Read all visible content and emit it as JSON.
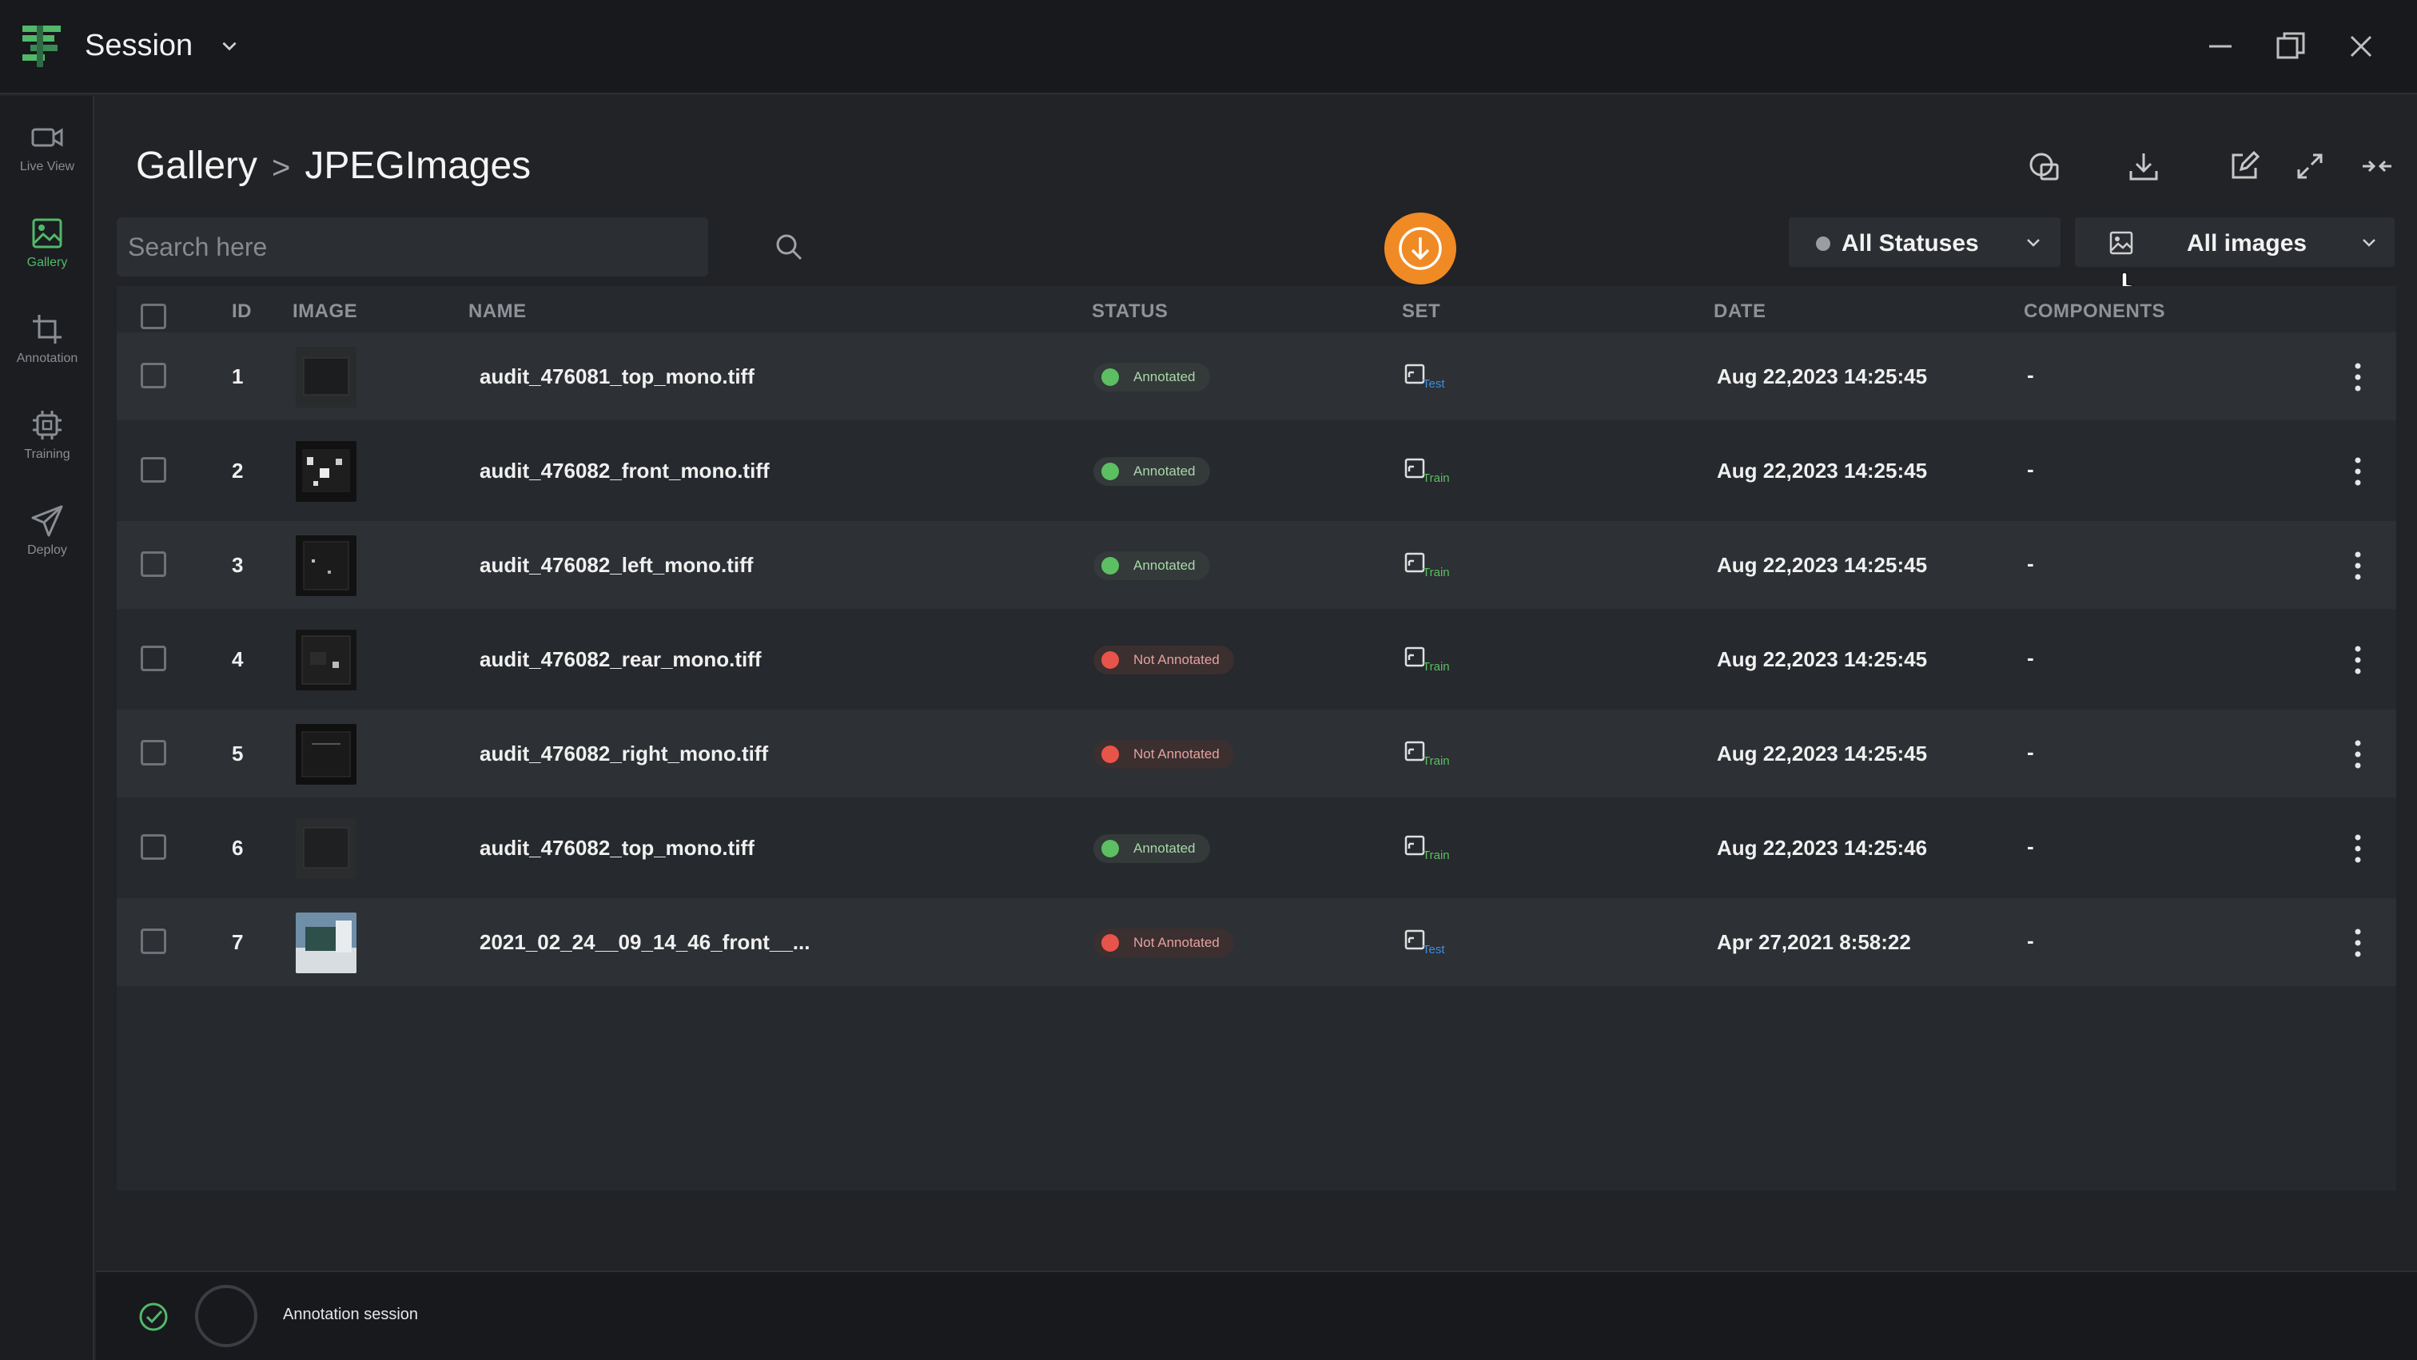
{
  "app": {
    "session_title": "Session"
  },
  "sidebar": {
    "items": [
      {
        "label": "Live View",
        "icon": "video-camera-icon",
        "active": false
      },
      {
        "label": "Gallery",
        "icon": "image-icon",
        "active": true
      },
      {
        "label": "Annotation",
        "icon": "crop-icon",
        "active": false
      },
      {
        "label": "Training",
        "icon": "chip-icon",
        "active": false
      },
      {
        "label": "Deploy",
        "icon": "send-icon",
        "active": false
      }
    ]
  },
  "breadcrumb": {
    "parent": "Gallery",
    "separator": ">",
    "current": "JPEGImages"
  },
  "search": {
    "placeholder": "Search here",
    "value": ""
  },
  "filters": {
    "status": "All Statuses",
    "images": "All images"
  },
  "table": {
    "headers": {
      "id": "ID",
      "image": "IMAGE",
      "name": "NAME",
      "status": "STATUS",
      "set": "SET",
      "date": "DATE",
      "components": "COMPONENTS"
    },
    "rows": [
      {
        "id": "1",
        "name": "audit_476081_top_mono.tiff",
        "status": "Annotated",
        "status_kind": "ok",
        "set": "Test",
        "date": "Aug 22,2023 14:25:45",
        "components": "-"
      },
      {
        "id": "2",
        "name": "audit_476082_front_mono.tiff",
        "status": "Annotated",
        "status_kind": "ok",
        "set": "Train",
        "date": "Aug 22,2023 14:25:45",
        "components": "-"
      },
      {
        "id": "3",
        "name": "audit_476082_left_mono.tiff",
        "status": "Annotated",
        "status_kind": "ok",
        "set": "Train",
        "date": "Aug 22,2023 14:25:45",
        "components": "-"
      },
      {
        "id": "4",
        "name": "audit_476082_rear_mono.tiff",
        "status": "Not Annotated",
        "status_kind": "no",
        "set": "Train",
        "date": "Aug 22,2023 14:25:45",
        "components": "-"
      },
      {
        "id": "5",
        "name": "audit_476082_right_mono.tiff",
        "status": "Not Annotated",
        "status_kind": "no",
        "set": "Train",
        "date": "Aug 22,2023 14:25:45",
        "components": "-"
      },
      {
        "id": "6",
        "name": "audit_476082_top_mono.tiff",
        "status": "Annotated",
        "status_kind": "ok",
        "set": "Train",
        "date": "Aug 22,2023 14:25:46",
        "components": "-"
      },
      {
        "id": "7",
        "name": "2021_02_24__09_14_46_front__...",
        "status": "Not Annotated",
        "status_kind": "no",
        "set": "Test",
        "date": "Apr 27,2021 8:58:22",
        "components": "-"
      }
    ]
  },
  "footer": {
    "session_label": "Annotation session"
  },
  "colors": {
    "accent_green": "#52b86a",
    "fab_orange": "#f08a24",
    "status_ok": "#5cbf62",
    "status_no": "#e8544a",
    "set_test": "#3d8fe0",
    "set_train": "#5cbf62"
  }
}
